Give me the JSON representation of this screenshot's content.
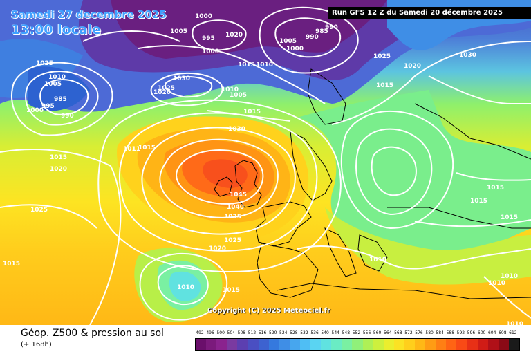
{
  "header": {
    "valid_date": "Samedi 27 decembre 2025",
    "valid_time": "13:00 locale",
    "run_info": "Run GFS 12 Z du Samedi 20 décembre 2025"
  },
  "map": {
    "copyright": "Copyright (C) 2025 Meteociel.fr",
    "isobar_labels": [
      "1000",
      "1005",
      "1020",
      "1000",
      "995",
      "1005",
      "1000",
      "990",
      "985",
      "990",
      "1015",
      "1010",
      "1025",
      "1010",
      "1005",
      "995",
      "985",
      "990",
      "1000",
      "1030",
      "1025",
      "1020",
      "1010",
      "1005",
      "1015",
      "1030",
      "1015",
      "1020",
      "1025",
      "1015",
      "1011",
      "1015",
      "1045",
      "1040",
      "1035",
      "1025",
      "1020",
      "1010",
      "1015",
      "1025",
      "1020",
      "1030",
      "1015",
      "1015",
      "1015",
      "1015",
      "1010",
      "1010",
      "1010",
      "1010"
    ]
  },
  "footer": {
    "product_title": "Géop. Z500 & pression au sol",
    "lead_time": "(+ 168h)"
  },
  "legend": {
    "labels": [
      "492",
      "496",
      "500",
      "504",
      "508",
      "512",
      "516",
      "520",
      "524",
      "528",
      "532",
      "536",
      "540",
      "544",
      "548",
      "552",
      "556",
      "560",
      "564",
      "568",
      "572",
      "576",
      "580",
      "584",
      "588",
      "592",
      "596",
      "600",
      "604",
      "608",
      "612"
    ],
    "colors": [
      "#6a0f6b",
      "#7b1a7c",
      "#8a238e",
      "#7a3aa0",
      "#5c3fb0",
      "#4a4fc2",
      "#3d62d0",
      "#3579de",
      "#3f8ee6",
      "#47a6ee",
      "#4fbef4",
      "#5ad4f2",
      "#60e2e0",
      "#6aecc4",
      "#7af0a2",
      "#90f07a",
      "#aef056",
      "#cdf03e",
      "#ebee2e",
      "#fbe224",
      "#ffcf1c",
      "#ffb816",
      "#ff9c14",
      "#ff7f14",
      "#ff6414",
      "#f94a16",
      "#e83016",
      "#d01c16",
      "#b01018",
      "#8a0a16",
      "#1a1a1a"
    ],
    "border_color": "#000000"
  }
}
